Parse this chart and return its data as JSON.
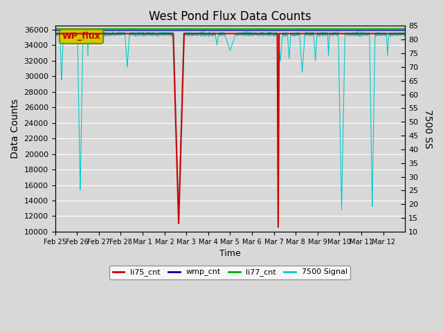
{
  "title": "West Pond Flux Data Counts",
  "xlabel": "Time",
  "ylabel": "Data Counts",
  "ylabel_right": "7500 SS",
  "ylim": [
    10000,
    36500
  ],
  "ylim_right": [
    10,
    85
  ],
  "plot_bg_color": "#d8d8d8",
  "legend_labels": [
    "li75_cnt",
    "wmp_cnt",
    "li77_cnt",
    "7500 Signal"
  ],
  "legend_colors": [
    "#cc0000",
    "#000099",
    "#00aa00",
    "#00cccc"
  ],
  "wp_flux_box_color": "#cccc00",
  "wp_flux_text_color": "#cc0000",
  "xtick_labels": [
    "Feb 25",
    "Feb 26",
    "Feb 27",
    "Feb 28",
    "Mar 1",
    "Mar 2",
    "Mar 3",
    "Mar 4",
    "Mar 5",
    "Mar 6",
    "Mar 7",
    "Mar 8",
    "Mar 9",
    "Mar 10",
    "Mar 11",
    "Mar 12"
  ],
  "ytick_left": [
    10000,
    12000,
    14000,
    16000,
    18000,
    20000,
    22000,
    24000,
    26000,
    28000,
    30000,
    32000,
    34000,
    36000
  ],
  "ytick_right": [
    10,
    15,
    20,
    25,
    30,
    35,
    40,
    45,
    50,
    55,
    60,
    65,
    70,
    75,
    80,
    85
  ],
  "n_days": 16,
  "pts_per_day": 288,
  "cyan_base": 82.0,
  "green_val": 36100,
  "blue_val": 35900,
  "red_base": 35500
}
